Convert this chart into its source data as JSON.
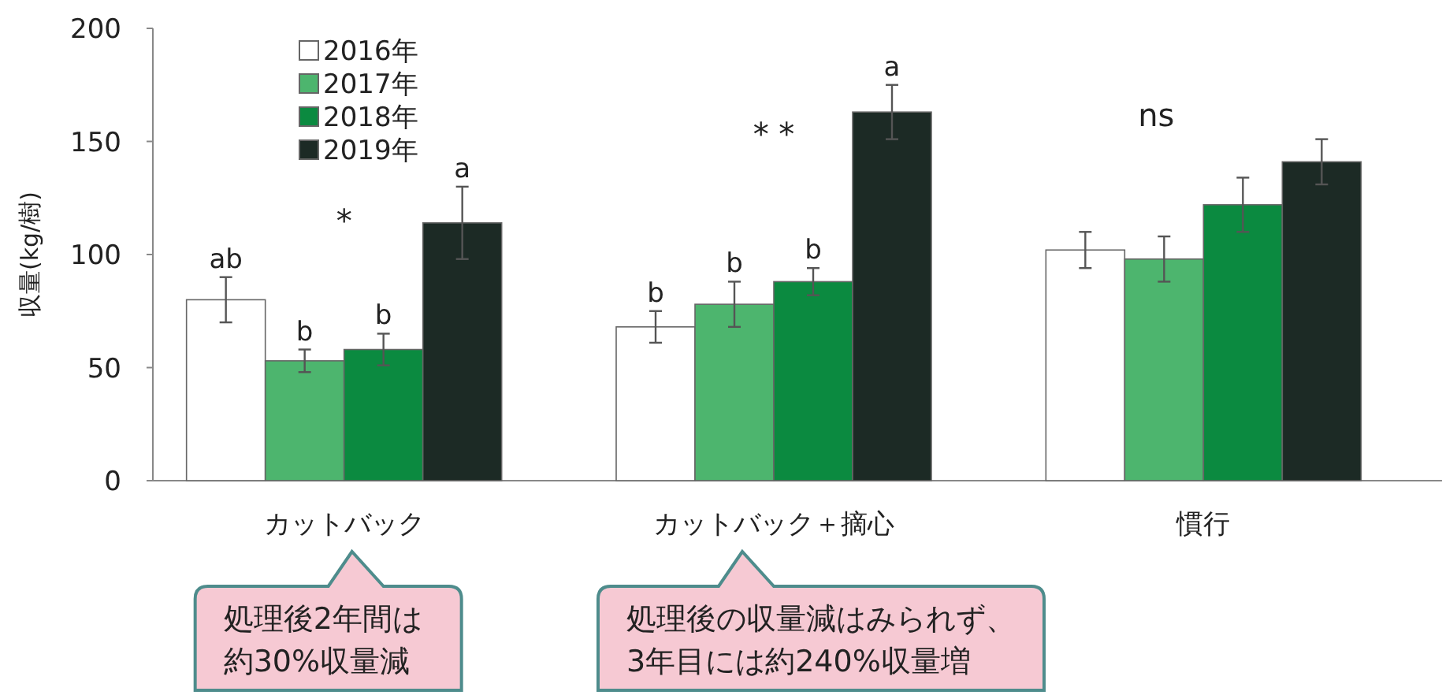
{
  "chart_data": {
    "type": "bar",
    "ylabel": "収量(kg/樹)",
    "categories": [
      "カットバック",
      "カットバック＋摘心",
      "慣行"
    ],
    "series": [
      {
        "name": "2016年",
        "color": "#ffffff",
        "values": [
          80,
          68,
          102
        ],
        "errors": [
          10,
          7,
          8
        ],
        "value_labels": [
          "ab",
          "b",
          null
        ]
      },
      {
        "name": "2017年",
        "color": "#4db56e",
        "values": [
          53,
          78,
          98
        ],
        "errors": [
          5,
          10,
          10
        ],
        "value_labels": [
          "b",
          "b",
          null
        ]
      },
      {
        "name": "2018年",
        "color": "#0b8a40",
        "values": [
          58,
          88,
          122
        ],
        "errors": [
          7,
          6,
          12
        ],
        "value_labels": [
          "b",
          "b",
          null
        ]
      },
      {
        "name": "2019年",
        "color": "#1c2a25",
        "values": [
          114,
          163,
          141
        ],
        "errors": [
          16,
          12,
          10
        ],
        "value_labels": [
          "a",
          "a",
          null
        ]
      }
    ],
    "ylim": [
      0,
      200
    ],
    "yticks": [
      0,
      50,
      100,
      150,
      200
    ],
    "legend": "top left",
    "annotations": [
      "*",
      "* *",
      "ns",
      "処理後2年間は",
      "約30%収量減",
      "処理後の収量減はみられず、",
      "3年目には約240%収量増"
    ]
  }
}
